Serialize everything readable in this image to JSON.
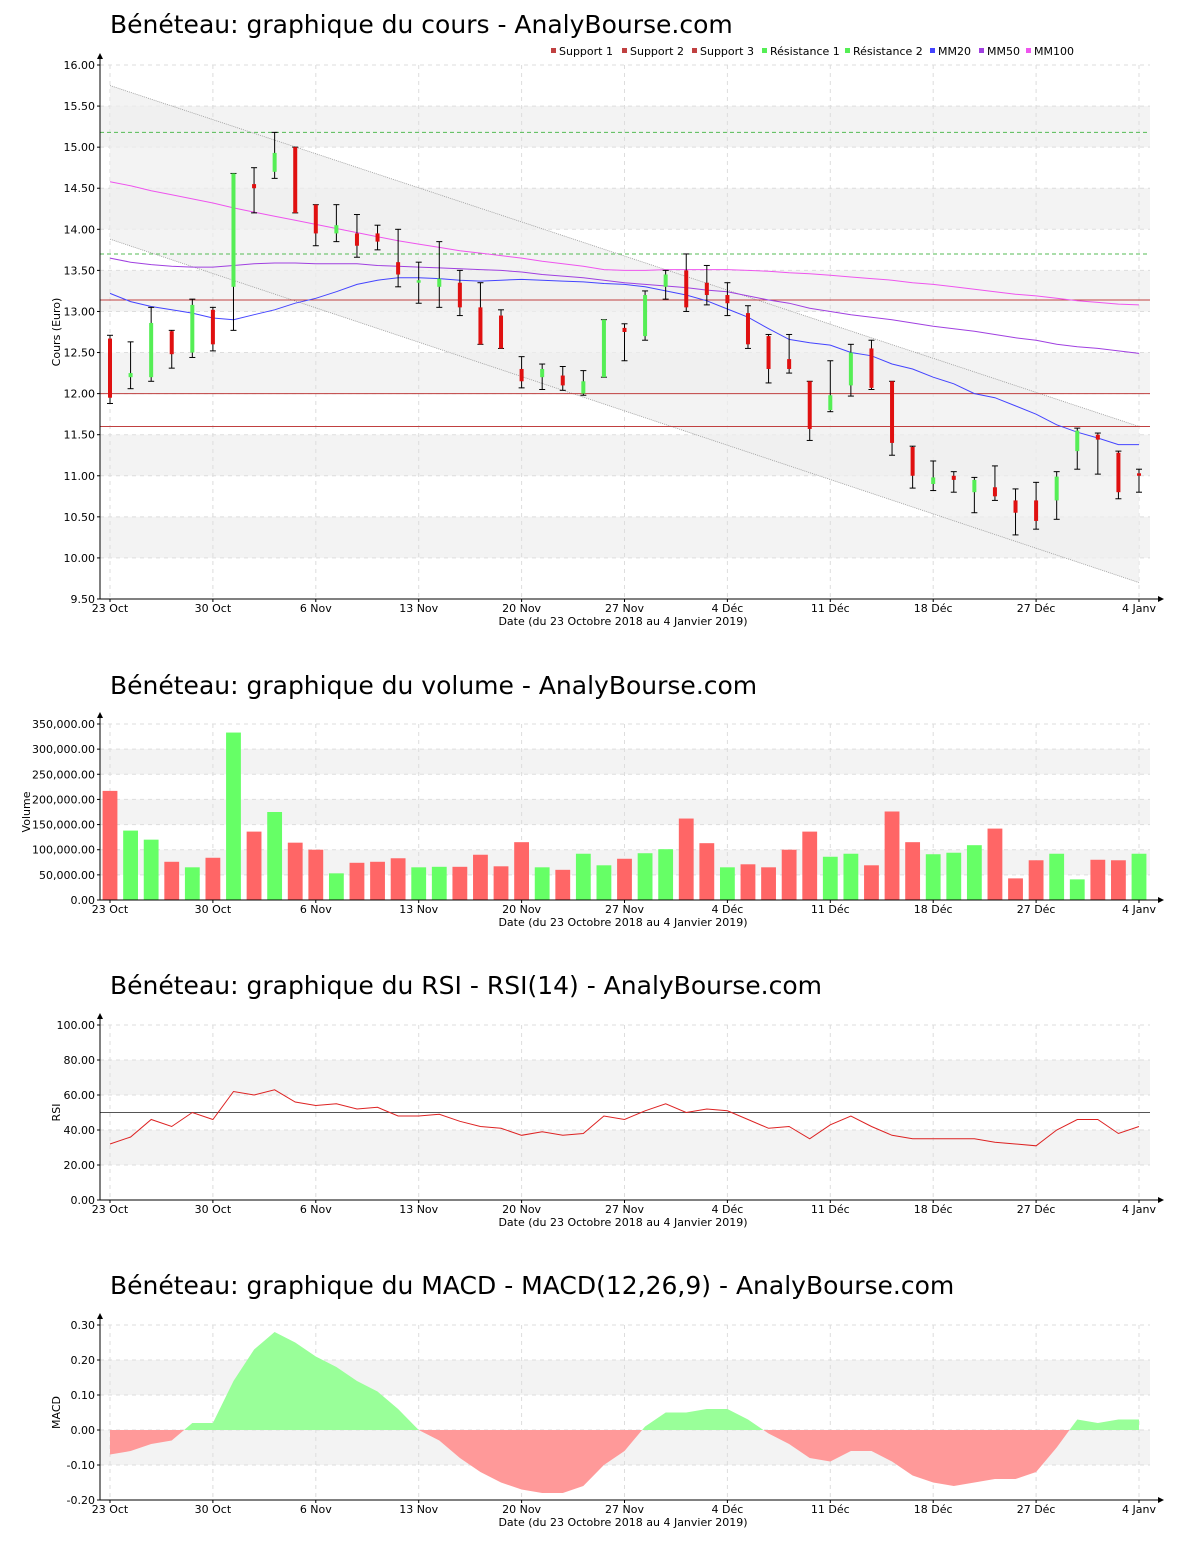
{
  "colors": {
    "bull": "#55ee55",
    "bear": "#e01010",
    "volume_up": "#66ff66",
    "volume_down": "#ff6666",
    "support_line": "#c04040",
    "resistance_line": "#55bb55",
    "mm20": "#4444ff",
    "mm50": "#a040e0",
    "mm100": "#ee55ee",
    "rsi_line": "#dd2222",
    "macd_pos": "#99ff99",
    "macd_neg": "#ff9999",
    "grid": "#dddddd",
    "band": "#f3f3f3",
    "channel": "#eeeeee"
  },
  "x_axis": {
    "ticks": [
      {
        "i": 0,
        "label": "23 Oct"
      },
      {
        "i": 5,
        "label": "30 Oct"
      },
      {
        "i": 10,
        "label": "6 Nov"
      },
      {
        "i": 15,
        "label": "13 Nov"
      },
      {
        "i": 20,
        "label": "20 Nov"
      },
      {
        "i": 25,
        "label": "27 Nov"
      },
      {
        "i": 30,
        "label": "4 Déc"
      },
      {
        "i": 35,
        "label": "11 Déc"
      },
      {
        "i": 40,
        "label": "18 Déc"
      },
      {
        "i": 45,
        "label": "27 Déc"
      },
      {
        "i": 50,
        "label": "4 Janv"
      }
    ],
    "label": "Date (du 23 Octobre 2018 au 4 Janvier 2019)"
  },
  "chart_data": [
    {
      "type": "candlestick",
      "title": "Bénéteau: graphique du cours - AnalyBourse.com",
      "ylabel": "Cours (Euro)",
      "ylim": [
        9.5,
        16.0
      ],
      "ytick_labels": [
        "9.50",
        "10.00",
        "10.50",
        "11.00",
        "11.50",
        "12.00",
        "12.50",
        "13.00",
        "13.50",
        "14.00",
        "14.50",
        "15.00",
        "15.50",
        "16.00"
      ],
      "legend": [
        "Support 1",
        "Support 2",
        "Support 3",
        "Résistance 1",
        "Résistance 2",
        "MM20",
        "MM50",
        "MM100"
      ],
      "legend_placement": "top-right",
      "support_levels": [
        13.14,
        12.0,
        11.6
      ],
      "resistance_levels": [
        15.18,
        13.7
      ],
      "channel": {
        "upper": [
          15.75,
          11.6
        ],
        "lower": [
          13.88,
          9.7
        ]
      },
      "candles": [
        {
          "o": 12.67,
          "h": 12.71,
          "l": 11.88,
          "c": 11.95
        },
        {
          "o": 12.2,
          "h": 12.63,
          "l": 12.06,
          "c": 12.25
        },
        {
          "o": 12.2,
          "h": 13.05,
          "l": 12.15,
          "c": 12.86
        },
        {
          "o": 12.76,
          "h": 12.77,
          "l": 12.31,
          "c": 12.48
        },
        {
          "o": 12.5,
          "h": 13.15,
          "l": 12.44,
          "c": 13.08
        },
        {
          "o": 13.02,
          "h": 13.05,
          "l": 12.52,
          "c": 12.6
        },
        {
          "o": 13.3,
          "h": 14.68,
          "l": 12.77,
          "c": 14.68
        },
        {
          "o": 14.55,
          "h": 14.75,
          "l": 14.2,
          "c": 14.5
        },
        {
          "o": 14.7,
          "h": 15.18,
          "l": 14.62,
          "c": 14.93
        },
        {
          "o": 15.0,
          "h": 15.0,
          "l": 14.2,
          "c": 14.2
        },
        {
          "o": 14.3,
          "h": 14.3,
          "l": 13.8,
          "c": 13.95
        },
        {
          "o": 13.95,
          "h": 14.3,
          "l": 13.85,
          "c": 14.05
        },
        {
          "o": 13.95,
          "h": 14.18,
          "l": 13.66,
          "c": 13.8
        },
        {
          "o": 13.95,
          "h": 14.05,
          "l": 13.75,
          "c": 13.85
        },
        {
          "o": 13.6,
          "h": 14.0,
          "l": 13.3,
          "c": 13.45
        },
        {
          "o": 13.35,
          "h": 13.6,
          "l": 13.1,
          "c": 13.38
        },
        {
          "o": 13.3,
          "h": 13.85,
          "l": 13.05,
          "c": 13.4
        },
        {
          "o": 13.35,
          "h": 13.5,
          "l": 12.95,
          "c": 13.05
        },
        {
          "o": 13.05,
          "h": 13.35,
          "l": 12.6,
          "c": 12.6
        },
        {
          "o": 12.95,
          "h": 13.02,
          "l": 12.55,
          "c": 12.55
        },
        {
          "o": 12.3,
          "h": 12.45,
          "l": 12.07,
          "c": 12.15
        },
        {
          "o": 12.2,
          "h": 12.36,
          "l": 12.05,
          "c": 12.3
        },
        {
          "o": 12.22,
          "h": 12.33,
          "l": 12.04,
          "c": 12.1
        },
        {
          "o": 12.0,
          "h": 12.28,
          "l": 11.98,
          "c": 12.15
        },
        {
          "o": 12.2,
          "h": 12.9,
          "l": 12.2,
          "c": 12.9
        },
        {
          "o": 12.8,
          "h": 12.85,
          "l": 12.4,
          "c": 12.75
        },
        {
          "o": 12.7,
          "h": 13.25,
          "l": 12.65,
          "c": 13.2
        },
        {
          "o": 13.3,
          "h": 13.5,
          "l": 13.15,
          "c": 13.45
        },
        {
          "o": 13.5,
          "h": 13.7,
          "l": 13.0,
          "c": 13.05
        },
        {
          "o": 13.35,
          "h": 13.56,
          "l": 13.08,
          "c": 13.2
        },
        {
          "o": 13.2,
          "h": 13.35,
          "l": 12.95,
          "c": 13.1
        },
        {
          "o": 12.98,
          "h": 13.07,
          "l": 12.55,
          "c": 12.6
        },
        {
          "o": 12.7,
          "h": 12.72,
          "l": 12.13,
          "c": 12.3
        },
        {
          "o": 12.42,
          "h": 12.72,
          "l": 12.25,
          "c": 12.3
        },
        {
          "o": 12.15,
          "h": 12.15,
          "l": 11.43,
          "c": 11.57
        },
        {
          "o": 11.8,
          "h": 12.4,
          "l": 11.78,
          "c": 11.98
        },
        {
          "o": 12.1,
          "h": 12.6,
          "l": 11.97,
          "c": 12.5
        },
        {
          "o": 12.55,
          "h": 12.65,
          "l": 12.05,
          "c": 12.07
        },
        {
          "o": 12.15,
          "h": 12.15,
          "l": 11.25,
          "c": 11.4
        },
        {
          "o": 11.35,
          "h": 11.36,
          "l": 10.85,
          "c": 11.0
        },
        {
          "o": 10.9,
          "h": 11.18,
          "l": 10.82,
          "c": 10.98
        },
        {
          "o": 11.0,
          "h": 11.05,
          "l": 10.8,
          "c": 10.95
        },
        {
          "o": 10.8,
          "h": 10.98,
          "l": 10.55,
          "c": 10.95
        },
        {
          "o": 10.86,
          "h": 11.12,
          "l": 10.7,
          "c": 10.75
        },
        {
          "o": 10.7,
          "h": 10.84,
          "l": 10.28,
          "c": 10.55
        },
        {
          "o": 10.7,
          "h": 10.92,
          "l": 10.35,
          "c": 10.45
        },
        {
          "o": 10.7,
          "h": 11.05,
          "l": 10.47,
          "c": 10.99
        },
        {
          "o": 11.3,
          "h": 11.58,
          "l": 11.08,
          "c": 11.55
        },
        {
          "o": 11.5,
          "h": 11.52,
          "l": 11.02,
          "c": 11.44
        },
        {
          "o": 11.28,
          "h": 11.3,
          "l": 10.72,
          "c": 10.8
        },
        {
          "o": 11.03,
          "h": 11.08,
          "l": 10.8,
          "c": 11.0
        }
      ],
      "mm20": [
        13.22,
        13.12,
        13.06,
        13.02,
        12.98,
        12.92,
        12.9,
        12.96,
        13.02,
        13.1,
        13.16,
        13.24,
        13.33,
        13.38,
        13.41,
        13.41,
        13.4,
        13.38,
        13.37,
        13.38,
        13.39,
        13.38,
        13.37,
        13.36,
        13.34,
        13.33,
        13.3,
        13.25,
        13.2,
        13.13,
        13.03,
        12.93,
        12.79,
        12.66,
        12.62,
        12.59,
        12.5,
        12.46,
        12.36,
        12.3,
        12.2,
        12.12,
        12.0,
        11.95,
        11.85,
        11.75,
        11.62,
        11.53,
        11.46,
        11.38,
        11.38
      ],
      "mm50": [
        13.65,
        13.6,
        13.57,
        13.55,
        13.54,
        13.54,
        13.56,
        13.58,
        13.59,
        13.59,
        13.58,
        13.58,
        13.58,
        13.56,
        13.55,
        13.54,
        13.53,
        13.52,
        13.51,
        13.5,
        13.48,
        13.45,
        13.43,
        13.41,
        13.38,
        13.35,
        13.33,
        13.31,
        13.29,
        13.26,
        13.24,
        13.19,
        13.14,
        13.1,
        13.04,
        13.0,
        12.96,
        12.93,
        12.9,
        12.86,
        12.82,
        12.79,
        12.76,
        12.72,
        12.68,
        12.65,
        12.6,
        12.57,
        12.55,
        12.52,
        12.49
      ],
      "mm100": [
        14.58,
        14.53,
        14.47,
        14.42,
        14.37,
        14.32,
        14.26,
        14.21,
        14.16,
        14.11,
        14.06,
        14.01,
        13.96,
        13.91,
        13.86,
        13.82,
        13.78,
        13.74,
        13.71,
        13.68,
        13.65,
        13.61,
        13.58,
        13.55,
        13.51,
        13.5,
        13.5,
        13.51,
        13.51,
        13.51,
        13.51,
        13.5,
        13.49,
        13.47,
        13.46,
        13.44,
        13.42,
        13.4,
        13.38,
        13.35,
        13.33,
        13.3,
        13.27,
        13.24,
        13.21,
        13.19,
        13.16,
        13.13,
        13.11,
        13.09,
        13.08
      ]
    },
    {
      "type": "bar",
      "title": "Bénéteau: graphique du volume - AnalyBourse.com",
      "ylabel": "Volume",
      "ylim": [
        0,
        350000
      ],
      "ytick_labels": [
        "0.00",
        "50,000.00",
        "100,000.00",
        "150,000.00",
        "200,000.00",
        "250,000.00",
        "300,000.00",
        "350,000.00"
      ],
      "values": [
        217000,
        138000,
        120000,
        76000,
        65000,
        84000,
        333000,
        136000,
        175000,
        114000,
        100000,
        53000,
        74000,
        76000,
        83000,
        65000,
        66000,
        66000,
        90000,
        67000,
        115000,
        65000,
        60000,
        92000,
        69000,
        82000,
        93000,
        101000,
        162000,
        113000,
        65000,
        71000,
        65000,
        100000,
        136000,
        86000,
        92000,
        69000,
        176000,
        115000,
        91000,
        94000,
        109000,
        142000,
        43000,
        79000,
        92000,
        41000,
        80000,
        79000,
        92000
      ],
      "up": [
        false,
        true,
        true,
        false,
        true,
        false,
        true,
        false,
        true,
        false,
        false,
        true,
        false,
        false,
        false,
        true,
        true,
        false,
        false,
        false,
        false,
        true,
        false,
        true,
        true,
        false,
        true,
        true,
        false,
        false,
        true,
        false,
        false,
        false,
        false,
        true,
        true,
        false,
        false,
        false,
        true,
        true,
        true,
        false,
        false,
        false,
        true,
        true,
        false,
        false,
        true
      ]
    },
    {
      "type": "line",
      "title": "Bénéteau: graphique du RSI - RSI(14) - AnalyBourse.com",
      "ylabel": "RSI",
      "ylim": [
        0,
        100
      ],
      "ytick_labels": [
        "0.00",
        "20.00",
        "40.00",
        "60.00",
        "80.00",
        "100.00"
      ],
      "reference_line": 50,
      "values": [
        32,
        36,
        46,
        42,
        50,
        46,
        62,
        60,
        63,
        56,
        54,
        55,
        52,
        53,
        48,
        48,
        49,
        45,
        42,
        41,
        37,
        39,
        37,
        38,
        48,
        46,
        51,
        55,
        50,
        52,
        51,
        46,
        41,
        42,
        35,
        43,
        48,
        42,
        37,
        35,
        35,
        35,
        35,
        33,
        32,
        31,
        40,
        46,
        46,
        38,
        42
      ]
    },
    {
      "type": "area",
      "title": "Bénéteau: graphique du MACD - MACD(12,26,9) - AnalyBourse.com",
      "ylabel": "MACD",
      "ylim": [
        -0.2,
        0.3
      ],
      "ytick_labels": [
        "-0.20",
        "-0.10",
        "0.00",
        "0.10",
        "0.20",
        "0.30"
      ],
      "values": [
        -0.07,
        -0.06,
        -0.04,
        -0.03,
        0.02,
        0.02,
        0.14,
        0.23,
        0.28,
        0.25,
        0.21,
        0.18,
        0.14,
        0.11,
        0.06,
        0.0,
        -0.03,
        -0.08,
        -0.12,
        -0.15,
        -0.17,
        -0.18,
        -0.18,
        -0.16,
        -0.1,
        -0.06,
        0.01,
        0.05,
        0.05,
        0.06,
        0.06,
        0.03,
        -0.01,
        -0.04,
        -0.08,
        -0.09,
        -0.06,
        -0.06,
        -0.09,
        -0.13,
        -0.15,
        -0.16,
        -0.15,
        -0.14,
        -0.14,
        -0.12,
        -0.05,
        0.03,
        0.02,
        0.03,
        0.03
      ]
    }
  ]
}
